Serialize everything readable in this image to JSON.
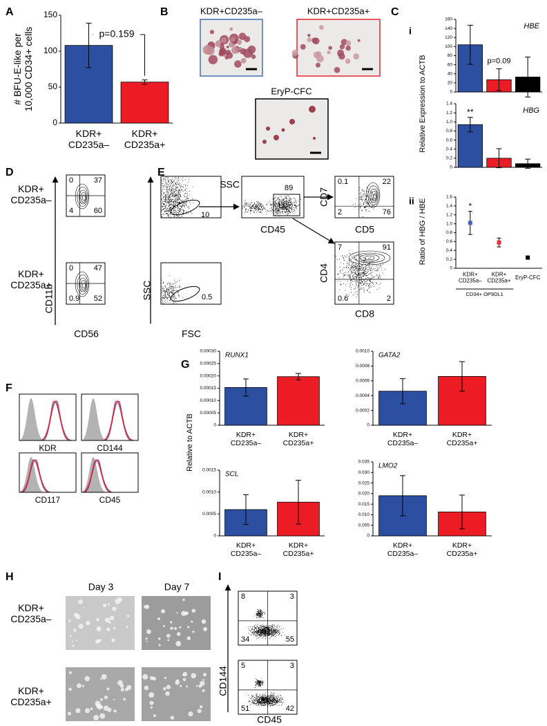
{
  "panel_labels": [
    "A",
    "B",
    "C",
    "D",
    "E",
    "F",
    "G",
    "H",
    "I"
  ],
  "chart_data": [
    {
      "type": "bar",
      "y_label": "# BFU-E-like per\n10,000 CD34+ cells",
      "categories": [
        "KDR+\nCD235a–",
        "KDR+\nCD235a+"
      ],
      "values": [
        108,
        57
      ],
      "errors": [
        31,
        3
      ],
      "colors": [
        "#2d4fa1",
        "#ec1c24"
      ],
      "ylim": [
        0,
        150
      ],
      "yticks": [
        0,
        50,
        100,
        150
      ],
      "annotation": "p=0.159"
    },
    {
      "type": "bar",
      "title": "HBE",
      "values": [
        104,
        27,
        33
      ],
      "errors": [
        43,
        24,
        44
      ],
      "colors": [
        "#2d4fa1",
        "#ec1c24",
        "#000000"
      ],
      "ylim": [
        0,
        160
      ],
      "yticks": [
        0,
        20,
        40,
        60,
        80,
        100,
        120,
        140,
        160
      ],
      "annotation": "p=0.09"
    },
    {
      "type": "bar",
      "title": "HBG",
      "values": [
        0.94,
        0.2,
        0.08
      ],
      "errors": [
        0.16,
        0.21,
        0.1
      ],
      "colors": [
        "#2d4fa1",
        "#ec1c24",
        "#000000"
      ],
      "ylim": [
        0,
        1.4
      ],
      "yticks": [
        0,
        0.2,
        0.4,
        0.6,
        0.8,
        {
          "value": 1,
          "label": "1.0"
        },
        1.2,
        1.4
      ],
      "annotation": "**"
    },
    {
      "type": "scatter",
      "y_label": "Ratio of HBG / HBE",
      "categories": [
        "KDR+\nCD235a–",
        "KDR+\nCD235a+",
        "EryP-CFC"
      ],
      "values": [
        1.02,
        0.58,
        0.24
      ],
      "errors": [
        0.26,
        0.1,
        0.03
      ],
      "colors": [
        "#4b62b0",
        "#e8323a",
        "#000000"
      ],
      "ylim": [
        0,
        1.6
      ],
      "yticks": [
        0,
        0.2,
        0.4,
        0.6,
        0.8,
        {
          "value": 1,
          "label": "1.0"
        },
        1.2,
        1.4,
        1.6
      ],
      "annotation": "*"
    },
    {
      "type": "bar",
      "title": "RUNX1",
      "categories": [
        "KDR+\nCD235a–",
        "KDR+\nCD235a+"
      ],
      "values": [
        0.000153,
        0.000197
      ],
      "errors": [
        3.5e-05,
        1.3e-05
      ],
      "colors": [
        "#2d4fa1",
        "#ec1c24"
      ],
      "ylim": [
        0,
        0.0003
      ],
      "yticks": [
        0,
        5e-05,
        {
          "value": 0.0001,
          "label": "0.00010"
        },
        0.00015,
        {
          "value": 0.0002,
          "label": "0.00020"
        },
        0.00025,
        {
          "value": 0.0003,
          "label": "0.00030"
        }
      ]
    },
    {
      "type": "bar",
      "title": "GATA2",
      "categories": [
        "KDR+\nCD235a–",
        "KDR+\nCD235a+"
      ],
      "values": [
        0.00046,
        0.00066
      ],
      "errors": [
        0.00017,
        0.0002
      ],
      "colors": [
        "#2d4fa1",
        "#ec1c24"
      ],
      "ylim": [
        0,
        0.001
      ],
      "yticks": [
        0,
        0.0002,
        0.0004,
        0.0006,
        0.0008,
        {
          "value": 0.001,
          "label": "0.0010"
        }
      ]
    },
    {
      "type": "bar",
      "title": "SCL",
      "categories": [
        "KDR+\nCD235a–",
        "KDR+\nCD235a+"
      ],
      "values": [
        0.0006,
        0.00077
      ],
      "errors": [
        0.00034,
        0.0005
      ],
      "colors": [
        "#2d4fa1",
        "#ec1c24"
      ],
      "ylim": [
        0,
        0.0015
      ],
      "yticks": [
        0,
        0.0005,
        {
          "value": 0.001,
          "label": "0.0010"
        },
        0.0015
      ]
    },
    {
      "type": "bar",
      "title": "LMO2",
      "categories": [
        "KDR+\nCD235a–",
        "KDR+\nCD235a+"
      ],
      "values": [
        0.019,
        0.0113
      ],
      "errors": [
        0.0095,
        0.008
      ],
      "colors": [
        "#2d4fa1",
        "#ec1c24"
      ],
      "ylim": [
        0,
        0.035
      ],
      "yticks": [
        0,
        0.005,
        {
          "value": 0.01,
          "label": "0.010"
        },
        0.015,
        {
          "value": 0.02,
          "label": "0.020"
        },
        0.025,
        {
          "value": 0.03,
          "label": "0.030"
        },
        0.035
      ]
    }
  ],
  "panel_b": {
    "images": [
      {
        "label": "KDR+CD235a–"
      },
      {
        "label": "KDR+CD235a+"
      },
      {
        "label": "EryP-CFC"
      }
    ]
  },
  "panel_c": {
    "sublabels": [
      "i",
      "ii"
    ],
    "y_label": "Relative Expression to ACTB",
    "group_label": "CD34+ OP9DL1"
  },
  "panel_d": {
    "rows": [
      "KDR+\nCD235a–",
      "KDR+\nCD235a+"
    ],
    "y_axis": "CD11b",
    "x_axis": "CD56",
    "quadrants": [
      [
        0,
        37,
        4,
        60
      ],
      [
        0,
        47,
        0.9,
        52
      ]
    ]
  },
  "panel_e": {
    "gate_1": {
      "y": "SSC",
      "x": "FSC",
      "values": [
        10,
        0.5
      ]
    },
    "gate_2": {
      "y": "SSC",
      "x": "CD45",
      "value": 89
    },
    "cd5_cd7": {
      "y": "CD7",
      "x": "CD5",
      "quadrants": [
        0.1,
        22,
        2,
        76
      ]
    },
    "cd8_cd4": {
      "y": "CD4",
      "x": "CD8",
      "quadrants": [
        7,
        91,
        0.6,
        2
      ]
    }
  },
  "panel_f": {
    "markers": [
      "KDR",
      "CD144",
      "CD117",
      "CD45"
    ]
  },
  "panel_g": {
    "y_label": "Relative to ACTB"
  },
  "panel_h": {
    "columns": [
      "Day 3",
      "Day 7"
    ],
    "rows": [
      "KDR+\nCD235a–",
      "KDR+\nCD235a+"
    ]
  },
  "panel_i": {
    "y_axis": "CD144",
    "x_axis": "CD45",
    "quadrants": [
      [
        8,
        3,
        34,
        55
      ],
      [
        5,
        3,
        51,
        42
      ]
    ]
  }
}
